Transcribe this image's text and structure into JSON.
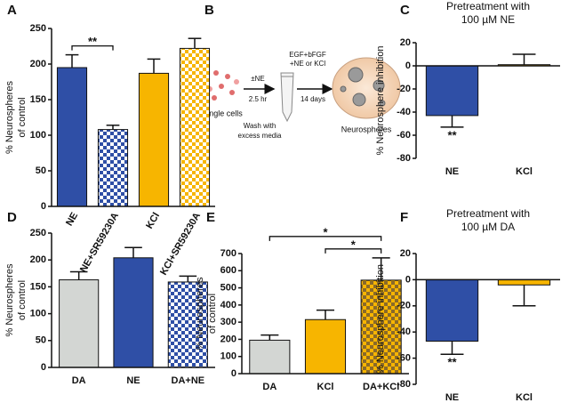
{
  "chart_data": [
    {
      "type": "bar",
      "panel_label": "A",
      "ylabel": [
        "% Neurospheres",
        "of control"
      ],
      "categories": [
        "NE",
        "NE+SR59230A",
        "KCl",
        "KCl+SR59230A"
      ],
      "values": [
        195,
        108,
        187,
        222
      ],
      "errors": [
        18,
        6,
        20,
        14
      ],
      "colors": [
        "#2f4fa6",
        "#2f4fa6",
        "#f7b500",
        "#f7b500"
      ],
      "checker_colors": [
        null,
        "#ffffff",
        null,
        "#ffffff"
      ],
      "ylim": [
        0,
        250
      ],
      "yticks": [
        0,
        50,
        100,
        150,
        200,
        250
      ],
      "grid": false,
      "brackets": [
        {
          "label": "**",
          "between": [
            "NE",
            "NE+SR59230A"
          ]
        }
      ]
    },
    {
      "type": "bar",
      "panel_label": "C",
      "title": [
        "Pretreatment with",
        "100 µM NE"
      ],
      "ylabel": [
        "% Neurosphere inhibition"
      ],
      "categories": [
        "NE",
        "KCl"
      ],
      "values": [
        -43,
        1
      ],
      "errors": [
        10,
        9
      ],
      "colors": [
        "#2f4fa6",
        "#f7b500"
      ],
      "checker_colors": [
        null,
        null
      ],
      "ylim": [
        -80,
        20
      ],
      "yticks": [
        -80,
        -60,
        -40,
        -20,
        0,
        20
      ],
      "grid": false,
      "marks": [
        {
          "label": "**",
          "category": "NE"
        }
      ]
    },
    {
      "type": "bar",
      "panel_label": "D",
      "ylabel": [
        "% Neurospheres",
        "of control"
      ],
      "categories": [
        "DA",
        "NE",
        "DA+NE"
      ],
      "values": [
        163,
        204,
        159
      ],
      "errors": [
        15,
        19,
        11
      ],
      "colors": [
        "#d3d6d3",
        "#2f4fa6",
        "#2f4fa6"
      ],
      "checker_colors": [
        null,
        null,
        "#ffffff"
      ],
      "ylim": [
        0,
        250
      ],
      "yticks": [
        0,
        50,
        100,
        150,
        200,
        250
      ],
      "grid": false
    },
    {
      "type": "bar",
      "panel_label": "E",
      "ylabel": [
        "% Neurospheres",
        "of control"
      ],
      "categories": [
        "DA",
        "KCl",
        "DA+KCl"
      ],
      "values": [
        195,
        315,
        545
      ],
      "errors": [
        30,
        55,
        130
      ],
      "colors": [
        "#d3d6d3",
        "#f7b500",
        "#f7b500"
      ],
      "checker_colors": [
        null,
        null,
        "#8a6a2a"
      ],
      "ylim": [
        0,
        700
      ],
      "yticks": [
        0,
        100,
        200,
        300,
        400,
        500,
        600,
        700
      ],
      "grid": false,
      "brackets": [
        {
          "label": "*",
          "between": [
            "KCl",
            "DA+KCl"
          ]
        },
        {
          "label": "*",
          "between": [
            "DA",
            "DA+KCl"
          ]
        }
      ]
    },
    {
      "type": "bar",
      "panel_label": "F",
      "title": [
        "Pretreatment with",
        "100 µM DA"
      ],
      "ylabel": [
        "% Neurosphere inhibition"
      ],
      "categories": [
        "NE",
        "KCl"
      ],
      "values": [
        -47,
        -4
      ],
      "errors": [
        10,
        16
      ],
      "colors": [
        "#2f4fa6",
        "#f7b500"
      ],
      "checker_colors": [
        null,
        null
      ],
      "ylim": [
        -80,
        20
      ],
      "yticks": [
        -80,
        -60,
        -40,
        -20,
        0,
        20
      ],
      "grid": false,
      "marks": [
        {
          "label": "**",
          "category": "NE"
        }
      ]
    }
  ],
  "diagram": {
    "panel_label": "B",
    "cells": "Single cells",
    "treat": "±NE",
    "time1": "2.5 hr",
    "media1": "EGF+bFGF",
    "media2": "+NE or KCl",
    "time2": "14 days",
    "wash1": "Wash with",
    "wash2": "excess media",
    "result": "Neurospheres"
  }
}
